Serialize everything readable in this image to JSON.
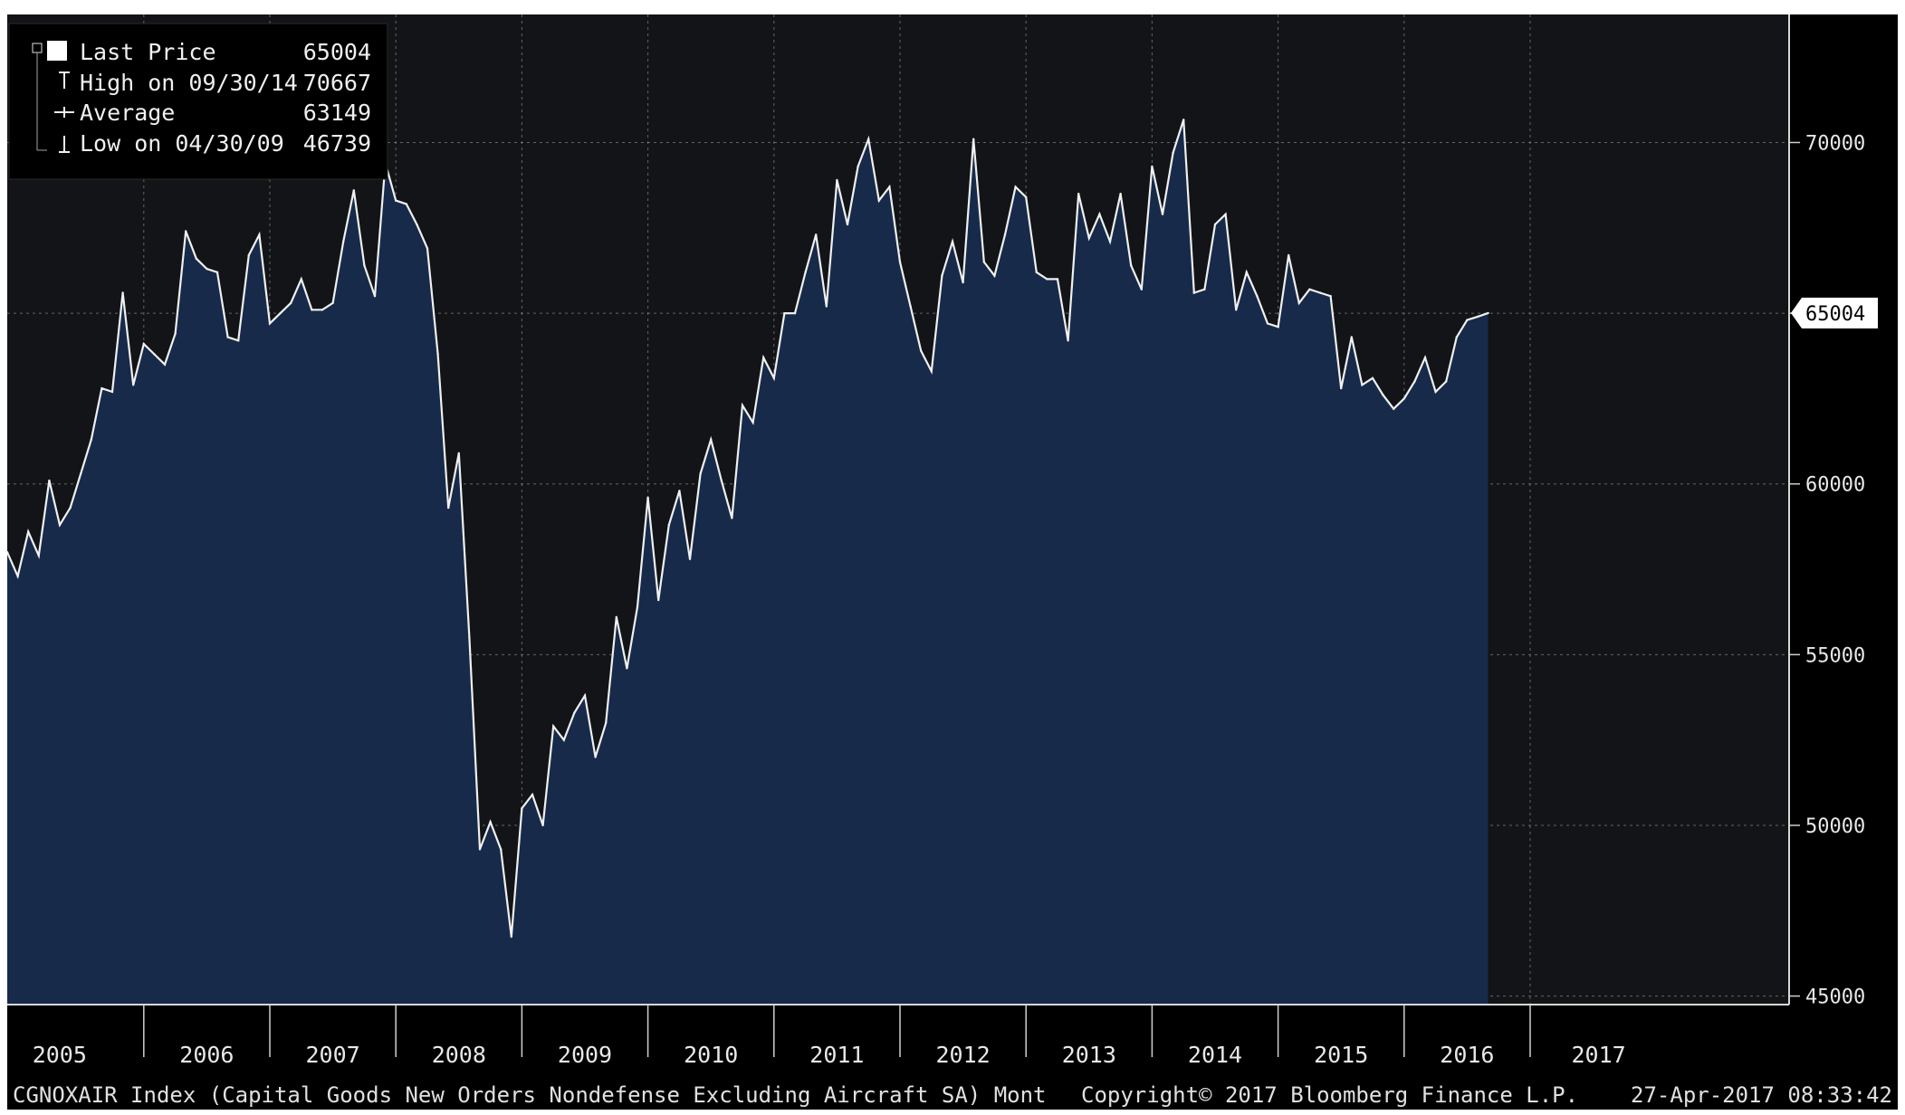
{
  "legend": {
    "last_price_label": "Last Price",
    "last_price_value": "65004",
    "high_label": "High on 09/30/14",
    "high_value": "70667",
    "average_label": "Average",
    "average_value": "63149",
    "low_label": "Low on 04/30/09",
    "low_value": "46739"
  },
  "last_value_tag": "65004",
  "footer": {
    "ticker": "CGNOXAIR Index (Capital Goods New Orders Nondefense Excluding Aircraft SA)  Mont",
    "copyright": "Copyright© 2017 Bloomberg Finance L.P.",
    "timestamp": "27-Apr-2017 08:33:42"
  },
  "colors": {
    "plot_background": "#121417",
    "area_fill": "#172a4a",
    "line": "#f0f0f0",
    "grid": "#9a9a9a"
  },
  "chart_data": {
    "type": "area",
    "x_unit": "month",
    "x_start": "2004-12",
    "x_end": "2017-03",
    "y_ticks": [
      45000,
      50000,
      55000,
      60000,
      65000,
      70000
    ],
    "y_tick_labels": [
      "45000",
      "50000",
      "55000",
      "60000",
      "65000",
      "70000"
    ],
    "ylim": [
      44750,
      73750
    ],
    "grid": true,
    "x_tick_labels": [
      "2005",
      "2006",
      "2007",
      "2008",
      "2009",
      "2010",
      "2011",
      "2012",
      "2013",
      "2014",
      "2015",
      "2016",
      "2017"
    ],
    "series": [
      {
        "name": "CGNOXAIR Index",
        "values": [
          58000,
          57300,
          58600,
          57900,
          60100,
          58800,
          59300,
          60300,
          61300,
          62800,
          62700,
          65600,
          62900,
          64100,
          63800,
          63500,
          64400,
          67400,
          66600,
          66300,
          66200,
          64300,
          64200,
          66700,
          67300,
          64700,
          65000,
          65300,
          66000,
          65100,
          65100,
          65300,
          67100,
          68600,
          66400,
          65500,
          69400,
          68300,
          68200,
          67600,
          66900,
          63800,
          59300,
          60900,
          55500,
          49300,
          50100,
          49300,
          46739,
          50500,
          50900,
          50000,
          52900,
          52500,
          53300,
          53800,
          52000,
          53000,
          56100,
          54600,
          56400,
          59600,
          56600,
          58800,
          59800,
          57800,
          60300,
          61300,
          60100,
          59000,
          62300,
          61800,
          63700,
          63100,
          65000,
          65000,
          66200,
          67300,
          65200,
          68900,
          67600,
          69300,
          70100,
          68300,
          68700,
          66500,
          65200,
          63900,
          63300,
          66100,
          67100,
          65900,
          70100,
          66500,
          66100,
          67300,
          68700,
          68400,
          66200,
          66000,
          66000,
          64200,
          68500,
          67200,
          67900,
          67100,
          68500,
          66400,
          65700,
          69300,
          67900,
          69700,
          70667,
          65600,
          65700,
          67600,
          67900,
          65100,
          66200,
          65500,
          64700,
          64600,
          66700,
          65300,
          65700,
          65600,
          65500,
          62800,
          64300,
          62900,
          63100,
          62600,
          62200,
          62500,
          63000,
          63700,
          62700,
          63000,
          64300,
          64800,
          64900,
          65004
        ]
      }
    ]
  }
}
